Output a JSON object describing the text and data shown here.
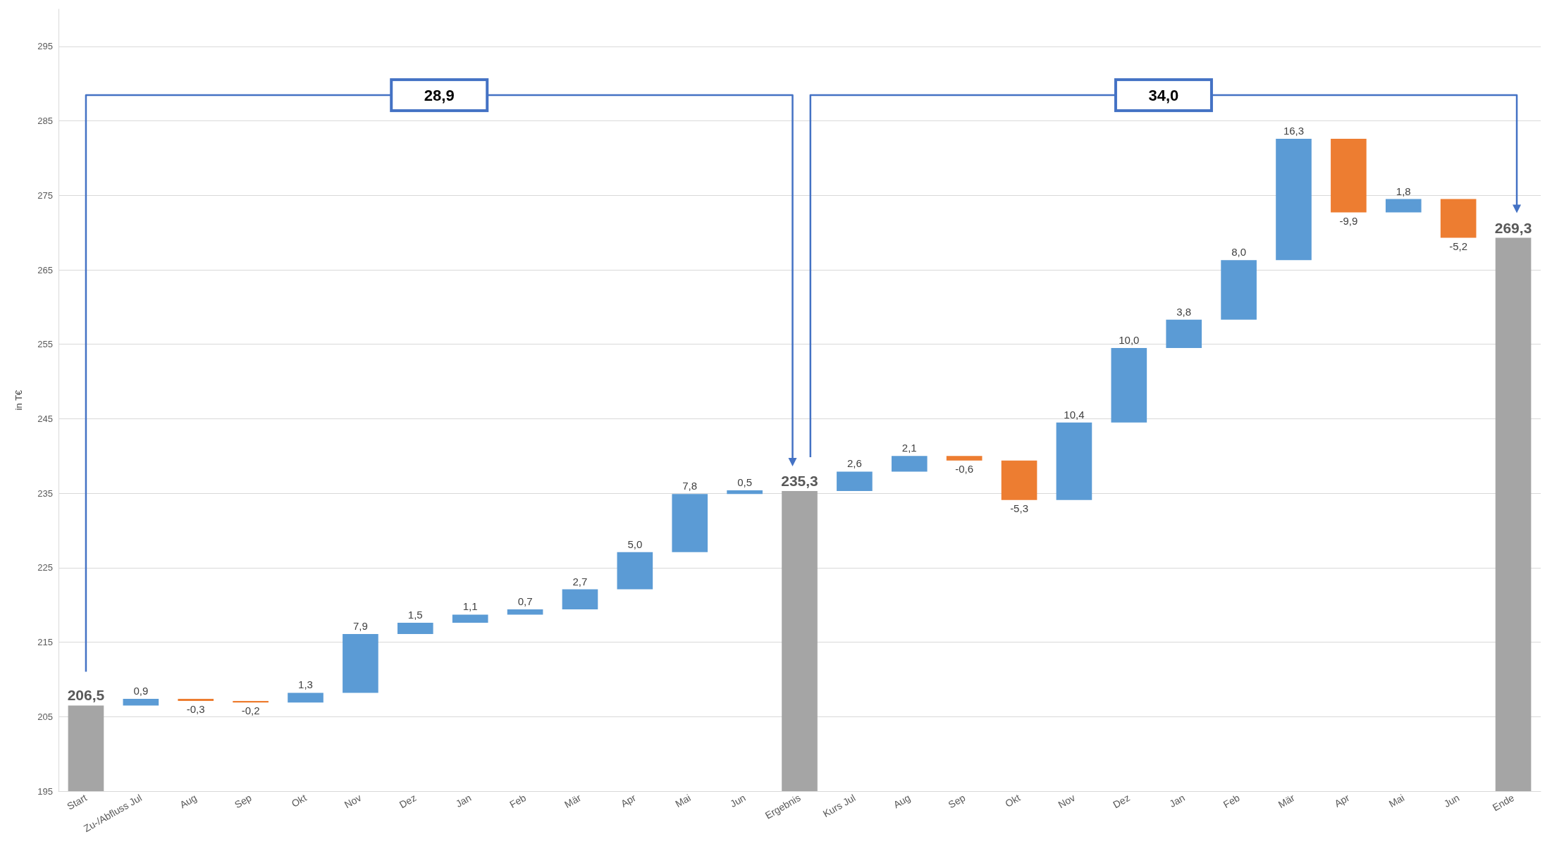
{
  "chart_data": {
    "type": "bar",
    "ylabel": "in T€",
    "categories": [
      "Start",
      "Zu-/Abfluss Jul",
      "Aug",
      "Sep",
      "Okt",
      "Nov",
      "Dez",
      "Jan",
      "Feb",
      "Mär",
      "Apr",
      "Mai",
      "Jun",
      "Ergebnis",
      "Kurs Jul",
      "Aug",
      "Sep",
      "Okt",
      "Nov",
      "Dez",
      "Jan",
      "Feb",
      "Mär",
      "Apr",
      "Mai",
      "Jun",
      "Ende"
    ],
    "values": [
      206.5,
      0.9,
      -0.3,
      -0.2,
      1.3,
      7.9,
      1.5,
      1.1,
      0.7,
      2.7,
      5.0,
      7.8,
      0.5,
      235.3,
      2.6,
      2.1,
      -0.6,
      -5.3,
      10.4,
      10.0,
      3.8,
      8.0,
      16.3,
      -9.9,
      1.8,
      -5.2,
      269.3
    ],
    "base": [
      null,
      206.5,
      207.4,
      207.1,
      206.9,
      208.2,
      216.1,
      217.6,
      218.7,
      219.4,
      222.1,
      227.1,
      234.9,
      null,
      235.3,
      237.9,
      240.0,
      239.4,
      234.1,
      244.5,
      254.5,
      258.3,
      266.3,
      282.6,
      272.7,
      274.5,
      null
    ],
    "value_labels": [
      "206,5",
      "0,9",
      "-0,3",
      "-0,2",
      "1,3",
      "7,9",
      "1,5",
      "1,1",
      "0,7",
      "2,7",
      "5,0",
      "7,8",
      "0,5",
      "235,3",
      "2,6",
      "2,1",
      "-0,6",
      "-5,3",
      "10,4",
      "10,0",
      "3,8",
      "8,0",
      "16,3",
      "-9,9",
      "1,8",
      "-5,2",
      "269,3"
    ],
    "colors": [
      "#a5a5a5",
      "#5b9bd5",
      "#ed7d31",
      "#ed7d31",
      "#5b9bd5",
      "#5b9bd5",
      "#5b9bd5",
      "#5b9bd5",
      "#5b9bd5",
      "#5b9bd5",
      "#5b9bd5",
      "#5b9bd5",
      "#5b9bd5",
      "#a5a5a5",
      "#5b9bd5",
      "#5b9bd5",
      "#ed7d31",
      "#ed7d31",
      "#5b9bd5",
      "#5b9bd5",
      "#5b9bd5",
      "#5b9bd5",
      "#5b9bd5",
      "#ed7d31",
      "#5b9bd5",
      "#ed7d31",
      "#a5a5a5"
    ],
    "ylim": [
      195,
      300
    ],
    "yticks": [
      195,
      205,
      215,
      225,
      235,
      245,
      255,
      265,
      275,
      285,
      295
    ],
    "grid": "y",
    "annotations": [
      "28,9",
      "34,0"
    ]
  }
}
